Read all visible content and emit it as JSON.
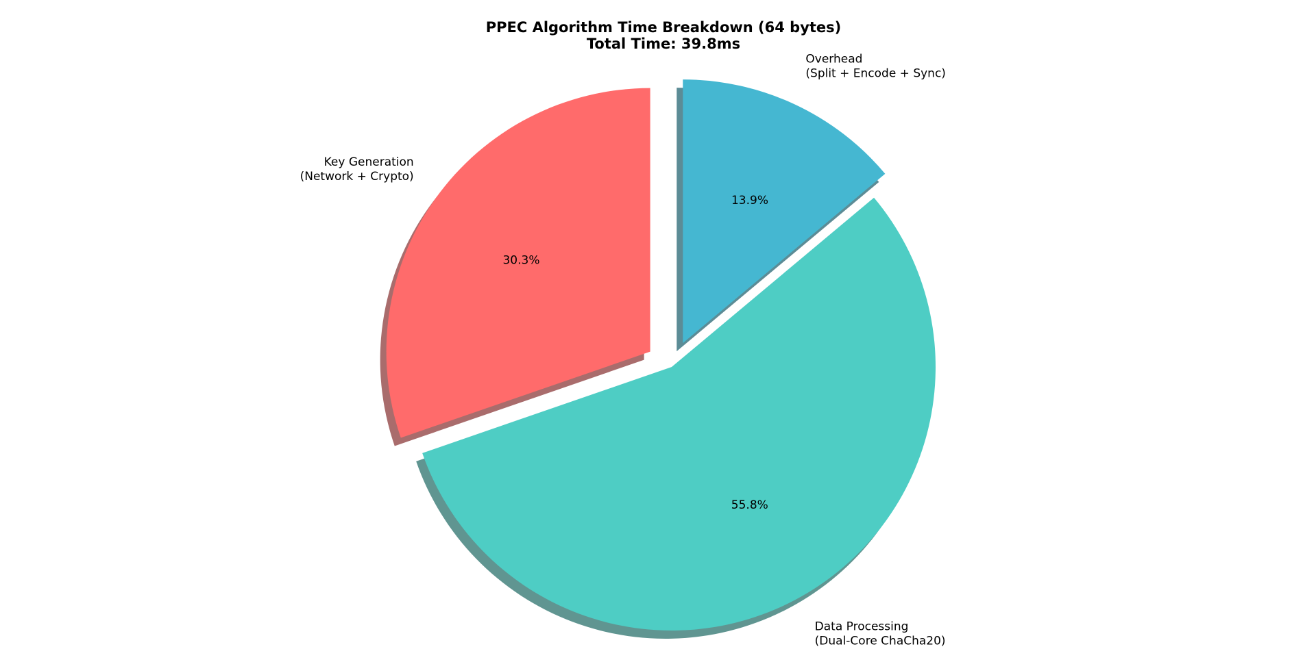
{
  "chart_data": {
    "type": "pie",
    "title_lines": [
      "PPEC Algorithm Time Breakdown (64 bytes)",
      "Total Time: 39.8ms"
    ],
    "start_angle_deg": 90,
    "direction": "counterclockwise",
    "shadow": true,
    "slices": [
      {
        "label_lines": [
          "Key Generation",
          "(Network + Crypto)"
        ],
        "percent": 30.3,
        "percent_label": "30.3%",
        "color": "#FF6B6B",
        "exploded": true
      },
      {
        "label_lines": [
          "Data Processing",
          "(Dual-Core ChaCha20)"
        ],
        "percent": 55.8,
        "percent_label": "55.8%",
        "color": "#4ECDC4",
        "exploded": false
      },
      {
        "label_lines": [
          "Overhead",
          "(Split + Encode + Sync)"
        ],
        "percent": 13.9,
        "percent_label": "13.9%",
        "color": "#45B7D1",
        "exploded": true
      }
    ]
  }
}
